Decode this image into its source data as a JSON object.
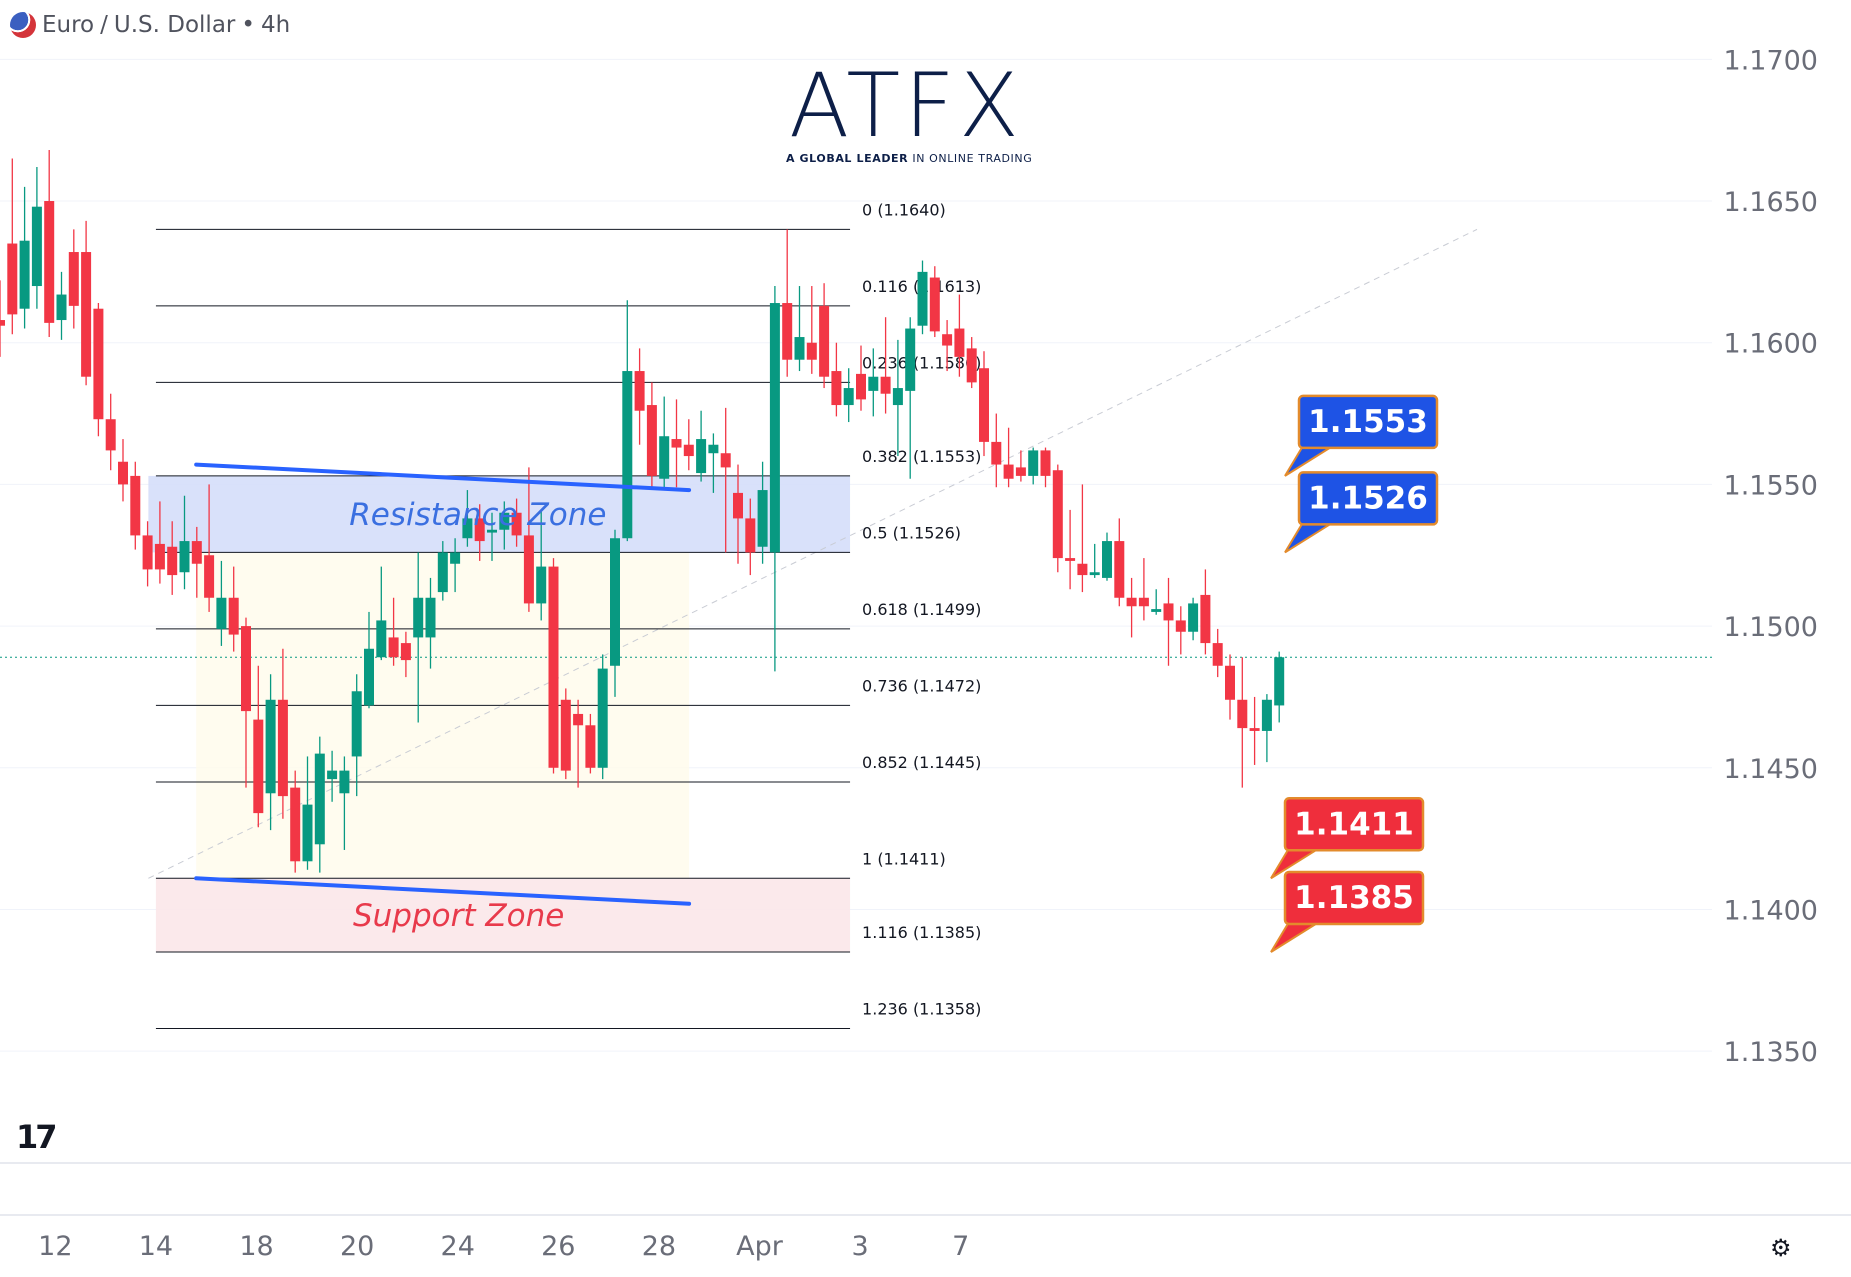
{
  "header": {
    "symbol": "Euro",
    "quote": "U.S. Dollar",
    "separator": "/",
    "dot": "•",
    "interval": "4h"
  },
  "logo": {
    "text": "ATFX",
    "tagline_bold": "A GLOBAL LEADER",
    "tagline_rest": "IN ONLINE TRADING"
  },
  "branding": {
    "tv_mark": "17"
  },
  "icons": {
    "settings": "settings-icon",
    "flag": "eur-usd-flag-icon"
  },
  "colors": {
    "up": "#089981",
    "down": "#f23645",
    "trendline": "#2962ff",
    "resistance_zone": "#d5defa",
    "support_zone": "#fbe7e9",
    "resistance_label": "#1e53e5",
    "support_label": "#ef2e3c",
    "label_border": "#e38b2c"
  },
  "chart_data": {
    "type": "candlestick",
    "symbol": "EURUSD",
    "timeframe": "4h",
    "y_axis": {
      "range": [
        1.1325,
        1.171
      ],
      "ticks": [
        "1.1700",
        "1.1650",
        "1.1600",
        "1.1550",
        "1.1500",
        "1.1450",
        "1.1400",
        "1.1350"
      ]
    },
    "x_axis": {
      "range": [
        10.9,
        47.7
      ],
      "ticks": [
        {
          "label": "12",
          "day": 12
        },
        {
          "label": "14",
          "day": 14
        },
        {
          "label": "18",
          "day": 16
        },
        {
          "label": "20",
          "day": 18
        },
        {
          "label": "24",
          "day": 20
        },
        {
          "label": "26",
          "day": 22
        },
        {
          "label": "28",
          "day": 24
        },
        {
          "label": "Apr",
          "day": 26
        },
        {
          "label": "3",
          "day": 28
        },
        {
          "label": "7",
          "day": 30
        }
      ]
    },
    "current_price": 1.1489,
    "fibonacci": {
      "x_start": 14.0,
      "x_end": 27.8,
      "levels": [
        {
          "ratio": "0",
          "price": 1.164,
          "label": "0 (1.1640)"
        },
        {
          "ratio": "0.116",
          "price": 1.1613,
          "label": "0.116 (1.1613)"
        },
        {
          "ratio": "0.236",
          "price": 1.1586,
          "label": "0.236 (1.1586)"
        },
        {
          "ratio": "0.382",
          "price": 1.1553,
          "label": "0.382 (1.1553)"
        },
        {
          "ratio": "0.5",
          "price": 1.1526,
          "label": "0.5 (1.1526)"
        },
        {
          "ratio": "0.618",
          "price": 1.1499,
          "label": "0.618 (1.1499)"
        },
        {
          "ratio": "0.736",
          "price": 1.1472,
          "label": "0.736 (1.1472)"
        },
        {
          "ratio": "0.852",
          "price": 1.1445,
          "label": "0.852 (1.1445)"
        },
        {
          "ratio": "1",
          "price": 1.1411,
          "label": "1 (1.1411)"
        },
        {
          "ratio": "1.116",
          "price": 1.1385,
          "label": "1.116 (1.1385)"
        },
        {
          "ratio": "1.236",
          "price": 1.1358,
          "label": "1.236 (1.1358)"
        }
      ]
    },
    "zones": [
      {
        "name": "Resistance Zone",
        "top": 1.1553,
        "bottom": 1.1526,
        "x_start": 13.85,
        "x_end": 27.8,
        "kind": "resistance"
      },
      {
        "name": "Support Zone",
        "top": 1.1411,
        "bottom": 1.1385,
        "x_start": 14.0,
        "x_end": 27.8,
        "kind": "support"
      }
    ],
    "trendlines": [
      {
        "x1": 14.8,
        "y1": 1.1557,
        "x2": 24.6,
        "y2": 1.1548
      },
      {
        "x1": 14.8,
        "y1": 1.1411,
        "x2": 24.6,
        "y2": 1.1402
      }
    ],
    "price_labels": [
      {
        "text": "1.1553",
        "price": 1.1553,
        "kind": "resistance"
      },
      {
        "text": "1.1526",
        "price": 1.1526,
        "kind": "resistance"
      },
      {
        "text": "1.1411",
        "price": 1.1411,
        "kind": "support"
      },
      {
        "text": "1.1385",
        "price": 1.1385,
        "kind": "support"
      }
    ],
    "candles": [
      [
        1.1608,
        1.1606,
        1.1622,
        1.1595
      ],
      [
        1.1635,
        1.161,
        1.1665,
        1.1603
      ],
      [
        1.1612,
        1.1636,
        1.1655,
        1.1605
      ],
      [
        1.162,
        1.1648,
        1.1662,
        1.1612
      ],
      [
        1.165,
        1.1607,
        1.1668,
        1.1602
      ],
      [
        1.1608,
        1.1617,
        1.1625,
        1.1601
      ],
      [
        1.1632,
        1.1613,
        1.164,
        1.1605
      ],
      [
        1.1632,
        1.1588,
        1.1643,
        1.1585
      ],
      [
        1.1612,
        1.1573,
        1.1614,
        1.1567
      ],
      [
        1.1573,
        1.1562,
        1.1582,
        1.1555
      ],
      [
        1.1558,
        1.155,
        1.1566,
        1.1544
      ],
      [
        1.1553,
        1.1532,
        1.1558,
        1.1527
      ],
      [
        1.1532,
        1.152,
        1.1537,
        1.1514
      ],
      [
        1.1529,
        1.152,
        1.1544,
        1.1515
      ],
      [
        1.1528,
        1.1518,
        1.1537,
        1.1511
      ],
      [
        1.1519,
        1.153,
        1.1546,
        1.1513
      ],
      [
        1.153,
        1.1522,
        1.1535,
        1.151
      ],
      [
        1.1525,
        1.151,
        1.155,
        1.1505
      ],
      [
        1.1499,
        1.151,
        1.1523,
        1.1493
      ],
      [
        1.151,
        1.1497,
        1.1521,
        1.1491
      ],
      [
        1.15,
        1.147,
        1.1503,
        1.1443
      ],
      [
        1.1467,
        1.1434,
        1.1486,
        1.1429
      ],
      [
        1.1441,
        1.1474,
        1.1483,
        1.1428
      ],
      [
        1.1474,
        1.144,
        1.1492,
        1.1432
      ],
      [
        1.1443,
        1.1417,
        1.1449,
        1.1413
      ],
      [
        1.1417,
        1.1437,
        1.1454,
        1.1414
      ],
      [
        1.1423,
        1.1455,
        1.1461,
        1.1413
      ],
      [
        1.1446,
        1.1449,
        1.1456,
        1.1438
      ],
      [
        1.1441,
        1.1449,
        1.1454,
        1.1421
      ],
      [
        1.1454,
        1.1477,
        1.1483,
        1.144
      ],
      [
        1.1472,
        1.1492,
        1.1505,
        1.1471
      ],
      [
        1.1489,
        1.1502,
        1.1521,
        1.1488
      ],
      [
        1.1496,
        1.1489,
        1.151,
        1.1486
      ],
      [
        1.1494,
        1.1488,
        1.1498,
        1.1482
      ],
      [
        1.1496,
        1.151,
        1.1526,
        1.1466
      ],
      [
        1.1496,
        1.151,
        1.1517,
        1.1485
      ],
      [
        1.1512,
        1.1526,
        1.153,
        1.1509
      ],
      [
        1.1522,
        1.1526,
        1.1531,
        1.1512
      ],
      [
        1.1531,
        1.1538,
        1.1548,
        1.1528
      ],
      [
        1.1538,
        1.153,
        1.1543,
        1.1523
      ],
      [
        1.1533,
        1.1534,
        1.154,
        1.1523
      ],
      [
        1.1534,
        1.154,
        1.1544,
        1.1527
      ],
      [
        1.154,
        1.1532,
        1.1545,
        1.1528
      ],
      [
        1.1532,
        1.1508,
        1.1556,
        1.1505
      ],
      [
        1.1508,
        1.1521,
        1.1541,
        1.1502
      ],
      [
        1.1521,
        1.145,
        1.1524,
        1.1448
      ],
      [
        1.1474,
        1.1449,
        1.1478,
        1.1446
      ],
      [
        1.1469,
        1.1465,
        1.1474,
        1.1443
      ],
      [
        1.1465,
        1.145,
        1.1469,
        1.1448
      ],
      [
        1.145,
        1.1485,
        1.149,
        1.1446
      ],
      [
        1.1486,
        1.1531,
        1.1534,
        1.1475
      ],
      [
        1.1531,
        1.159,
        1.1615,
        1.153
      ],
      [
        1.159,
        1.1576,
        1.1598,
        1.1564
      ],
      [
        1.1578,
        1.1553,
        1.1586,
        1.1549
      ],
      [
        1.1552,
        1.1567,
        1.1581,
        1.1549
      ],
      [
        1.1566,
        1.1563,
        1.158,
        1.1549
      ],
      [
        1.1564,
        1.156,
        1.1573,
        1.1555
      ],
      [
        1.1554,
        1.1566,
        1.1576,
        1.1551
      ],
      [
        1.1561,
        1.1564,
        1.1568,
        1.1547
      ],
      [
        1.1561,
        1.1556,
        1.1577,
        1.1526
      ],
      [
        1.1547,
        1.1538,
        1.1557,
        1.1522
      ],
      [
        1.1538,
        1.1526,
        1.1545,
        1.1518
      ],
      [
        1.1528,
        1.1548,
        1.1558,
        1.1522
      ],
      [
        1.1526,
        1.1614,
        1.162,
        1.1484
      ],
      [
        1.1614,
        1.1594,
        1.164,
        1.1588
      ],
      [
        1.1594,
        1.1602,
        1.162,
        1.159
      ],
      [
        1.16,
        1.1594,
        1.162,
        1.1589
      ],
      [
        1.1613,
        1.1588,
        1.1621,
        1.1584
      ],
      [
        1.159,
        1.1578,
        1.16,
        1.1574
      ],
      [
        1.1578,
        1.1584,
        1.1591,
        1.1572
      ],
      [
        1.1589,
        1.158,
        1.1599,
        1.1576
      ],
      [
        1.1583,
        1.1588,
        1.1598,
        1.1574
      ],
      [
        1.1588,
        1.1582,
        1.1609,
        1.1575
      ],
      [
        1.1578,
        1.1584,
        1.1601,
        1.156
      ],
      [
        1.1583,
        1.1605,
        1.1609,
        1.1552
      ],
      [
        1.1606,
        1.1625,
        1.1629,
        1.1603
      ],
      [
        1.1623,
        1.1604,
        1.1627,
        1.1602
      ],
      [
        1.1603,
        1.1599,
        1.1608,
        1.159
      ],
      [
        1.1605,
        1.1595,
        1.1617,
        1.1588
      ],
      [
        1.1598,
        1.1586,
        1.1602,
        1.1584
      ],
      [
        1.1591,
        1.1565,
        1.1597,
        1.156
      ],
      [
        1.1565,
        1.1557,
        1.1575,
        1.1549
      ],
      [
        1.1557,
        1.1552,
        1.157,
        1.1549
      ],
      [
        1.1556,
        1.1553,
        1.1562,
        1.1551
      ],
      [
        1.1553,
        1.1562,
        1.1563,
        1.155
      ],
      [
        1.1562,
        1.1553,
        1.1563,
        1.1549
      ],
      [
        1.1555,
        1.1524,
        1.1557,
        1.1519
      ],
      [
        1.1524,
        1.1523,
        1.1541,
        1.1513
      ],
      [
        1.1522,
        1.1518,
        1.155,
        1.1512
      ],
      [
        1.1518,
        1.1519,
        1.1529,
        1.1517
      ],
      [
        1.1517,
        1.153,
        1.1533,
        1.1516
      ],
      [
        1.153,
        1.151,
        1.1538,
        1.1507
      ],
      [
        1.151,
        1.1507,
        1.1517,
        1.1496
      ],
      [
        1.151,
        1.1507,
        1.1524,
        1.1502
      ],
      [
        1.1505,
        1.1506,
        1.1513,
        1.1504
      ],
      [
        1.1508,
        1.1502,
        1.1517,
        1.1486
      ],
      [
        1.1502,
        1.1498,
        1.1507,
        1.149
      ],
      [
        1.1498,
        1.1508,
        1.151,
        1.1495
      ],
      [
        1.1511,
        1.1494,
        1.152,
        1.149
      ],
      [
        1.1494,
        1.1486,
        1.1499,
        1.1482
      ],
      [
        1.1486,
        1.1474,
        1.149,
        1.1467
      ],
      [
        1.1474,
        1.1464,
        1.1489,
        1.1443
      ],
      [
        1.1464,
        1.1463,
        1.1475,
        1.1451
      ],
      [
        1.1463,
        1.1474,
        1.1476,
        1.1452
      ],
      [
        1.1472,
        1.1489,
        1.1491,
        1.1466
      ]
    ]
  }
}
